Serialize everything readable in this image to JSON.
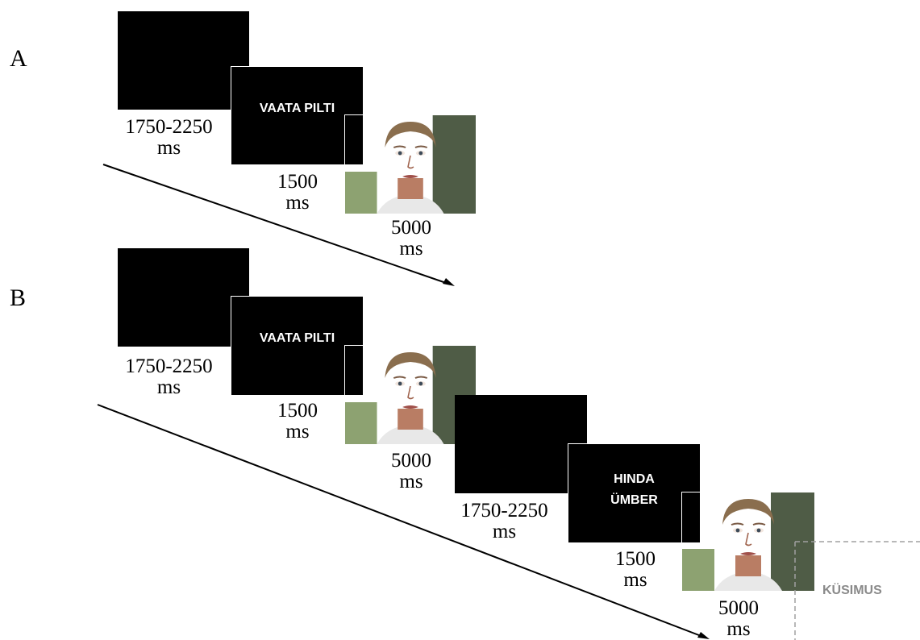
{
  "panels": {
    "a": {
      "label": "A",
      "screen1_duration": [
        "1750-2250",
        "ms"
      ],
      "screen2_text": "VAATA PILTI",
      "screen2_duration": [
        "1500",
        "ms"
      ],
      "screen3_duration": [
        "5000",
        "ms"
      ]
    },
    "b": {
      "label": "B",
      "screen1_duration": [
        "1750-2250",
        "ms"
      ],
      "screen2_text": "VAATA PILTI",
      "screen2_duration": [
        "1500",
        "ms"
      ],
      "screen3_duration": [
        "5000",
        "ms"
      ],
      "screen4_duration": [
        "1750-2250",
        "ms"
      ],
      "screen5_text": [
        "HINDA",
        "ÜMBER"
      ],
      "screen5_duration": [
        "1500",
        "ms"
      ],
      "screen6_duration": [
        "5000",
        "ms"
      ],
      "question_text": "KÜSIMUS"
    }
  },
  "colors": {
    "screen": "#000000",
    "question_text": "#8a8a8a"
  }
}
